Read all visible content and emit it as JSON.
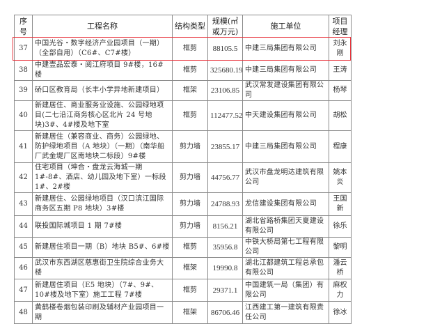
{
  "header": {
    "seq": "序号",
    "name": "工程名称",
    "structure": "结构类型",
    "scale": "规模(㎡或万元)",
    "company": "施工单位",
    "manager": "项目经理"
  },
  "highlight_color": "#e8323a",
  "rows": [
    {
      "seq": "37",
      "name": "中国光谷・数字经济产业园项目（一期）（全部自用）（C6#、C7#楼）",
      "structure": "框剪",
      "scale": "88105.5",
      "company": "中建三局集团有限公司",
      "manager": "刘永刚",
      "highlighted": true
    },
    {
      "seq": "38",
      "name": "中建壹品宏泰・阅江府项目 9#楼，16#楼",
      "structure": "框剪",
      "scale": "325680.19",
      "company": "中建三局集团有限公司",
      "manager": "王涛"
    },
    {
      "seq": "39",
      "name": "硚口区教育局（长丰小学异地新建项目）",
      "structure": "框架",
      "scale": "23106.85",
      "company": "武汉常发建设集团有限公司",
      "manager": "杨琴"
    },
    {
      "seq": "40",
      "name": "新建居住、商业服务业设施、公园绿地项目(二七沿江商务核心区北片 24 号地块)3#、4#楼及地下室",
      "structure": "框剪",
      "scale": "112477.52",
      "company": "中天建设集团有限公司",
      "manager": "胡松"
    },
    {
      "seq": "41",
      "name": "新建居住（兼容商业、商务）公园绿地、防护绿地项目（A 地块）（一期）（南华船厂武金堤厂区南地块二标段）9#楼",
      "structure": "剪力墙",
      "scale": "23855.17",
      "company": "中建三局集团有限公司",
      "manager": "程康"
    },
    {
      "seq": "42",
      "name": "住宅项目（坤合・盘龙云海城一期 1#-8#、酒店、幼儿园及地下室）一标段 1#、2#楼",
      "structure": "剪力墙",
      "scale": "44756.77",
      "company": "武汉市盘龙明达建筑有限公司",
      "manager": "姚本炎"
    },
    {
      "seq": "43",
      "name": "新建居住、公园绿地项目（汉口滨江国际商务区五期 P8 地块）3#楼",
      "structure": "剪力墙",
      "scale": "24788.93",
      "company": "龙信建设集团有限公司",
      "manager": "王国新"
    },
    {
      "seq": "44",
      "name": "联投国际城项目 1 期 7#楼",
      "structure": "剪力墙",
      "scale": "8156.21",
      "company": "湖北省路桥集团天夏建设有限公司",
      "manager": "徐乐"
    },
    {
      "seq": "45",
      "name": "新建居住项目一期（B）地块 B5#、6#楼",
      "structure": "框剪",
      "scale": "35956.8",
      "company": "中铁大桥局第七工程有限公司",
      "manager": "黎明"
    },
    {
      "seq": "46",
      "name": "武汉市东西湖区慈惠街卫生院综合业务大楼",
      "structure": "框架",
      "scale": "19990.8",
      "company": "湖北江都建筑工程总承包有限公司",
      "manager": "潘云桥"
    },
    {
      "seq": "47",
      "name": "新建居住项目（E5 地块）（7#、9#、10#楼及地下室）施工工程 7#楼",
      "structure": "框剪",
      "scale": "29371.1",
      "company": "中国建筑一局（集团）有限公司",
      "manager": "麻权力"
    },
    {
      "seq": "48",
      "name": "黄鹤楼卷烟包装印刷及辅材产业园项目一期",
      "structure": "框架",
      "scale": "86706.46",
      "company": "江西建工第一建筑有限责任公司",
      "manager": "徐冰"
    }
  ]
}
